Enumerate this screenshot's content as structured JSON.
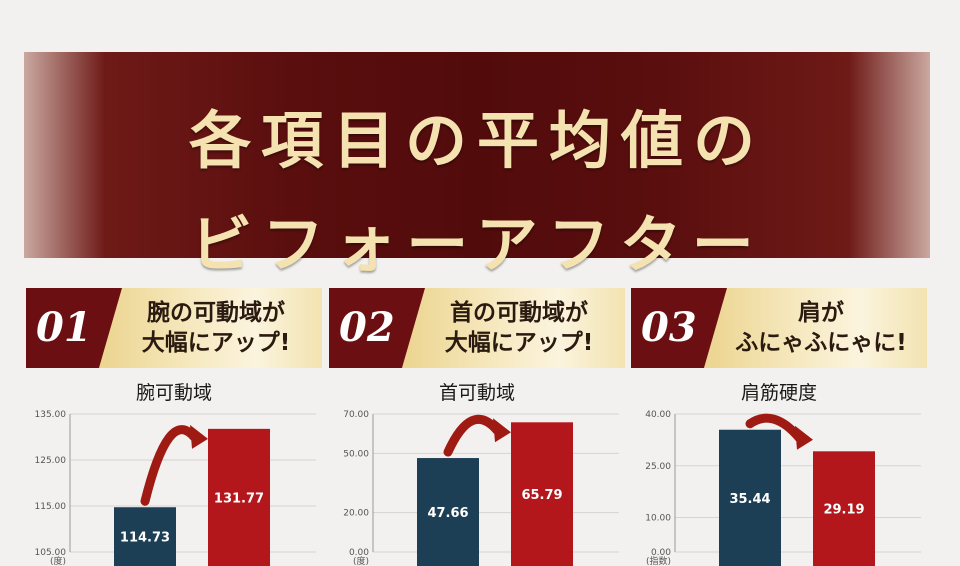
{
  "banner": {
    "line1": "各項目の平均値の",
    "line2": "ビフォーアフター"
  },
  "colors": {
    "before": "#1d3f55",
    "after": "#b3171c",
    "banner": "#5a0e0e",
    "gold": "#f4e2b0",
    "arrow": "#a01a14"
  },
  "cards": [
    {
      "number": "01",
      "heading_line1": "腕の可動域が",
      "heading_line2": "大幅にアップ!",
      "chart_title": "腕可動域"
    },
    {
      "number": "02",
      "heading_line1": "首の可動域が",
      "heading_line2": "大幅にアップ!",
      "chart_title": "首可動域"
    },
    {
      "number": "03",
      "heading_line1": "肩が",
      "heading_line2": "ふにゃふにゃに!",
      "chart_title": "肩筋硬度"
    }
  ],
  "chart_data": [
    {
      "type": "bar",
      "title": "腕可動域",
      "unit": "(度)",
      "categories": [
        "",
        ""
      ],
      "values": [
        114.73,
        131.77
      ],
      "value_labels": [
        "114.73",
        "131.77"
      ],
      "ylim": [
        105,
        135
      ],
      "yticks": [
        105,
        115,
        125,
        135
      ],
      "ytick_labels": [
        "105.00",
        "115.00",
        "125.00",
        "135.00"
      ],
      "grid": true
    },
    {
      "type": "bar",
      "title": "首可動域",
      "unit": "(度)",
      "categories": [
        "",
        ""
      ],
      "values": [
        47.66,
        65.79
      ],
      "value_labels": [
        "47.66",
        "65.79"
      ],
      "ylim": [
        0,
        70
      ],
      "yticks": [
        0,
        20,
        50,
        70
      ],
      "ytick_labels": [
        "0.00",
        "20.00",
        "50.00",
        "70.00"
      ],
      "grid": true
    },
    {
      "type": "bar",
      "title": "肩筋硬度",
      "unit": "(指数)",
      "categories": [
        "",
        ""
      ],
      "values": [
        35.44,
        29.19
      ],
      "value_labels": [
        "35.44",
        "29.19"
      ],
      "ylim": [
        0,
        40
      ],
      "yticks": [
        0,
        10,
        25,
        40
      ],
      "ytick_labels": [
        "0.00",
        "10.00",
        "25.00",
        "40.00"
      ],
      "grid": true
    }
  ]
}
